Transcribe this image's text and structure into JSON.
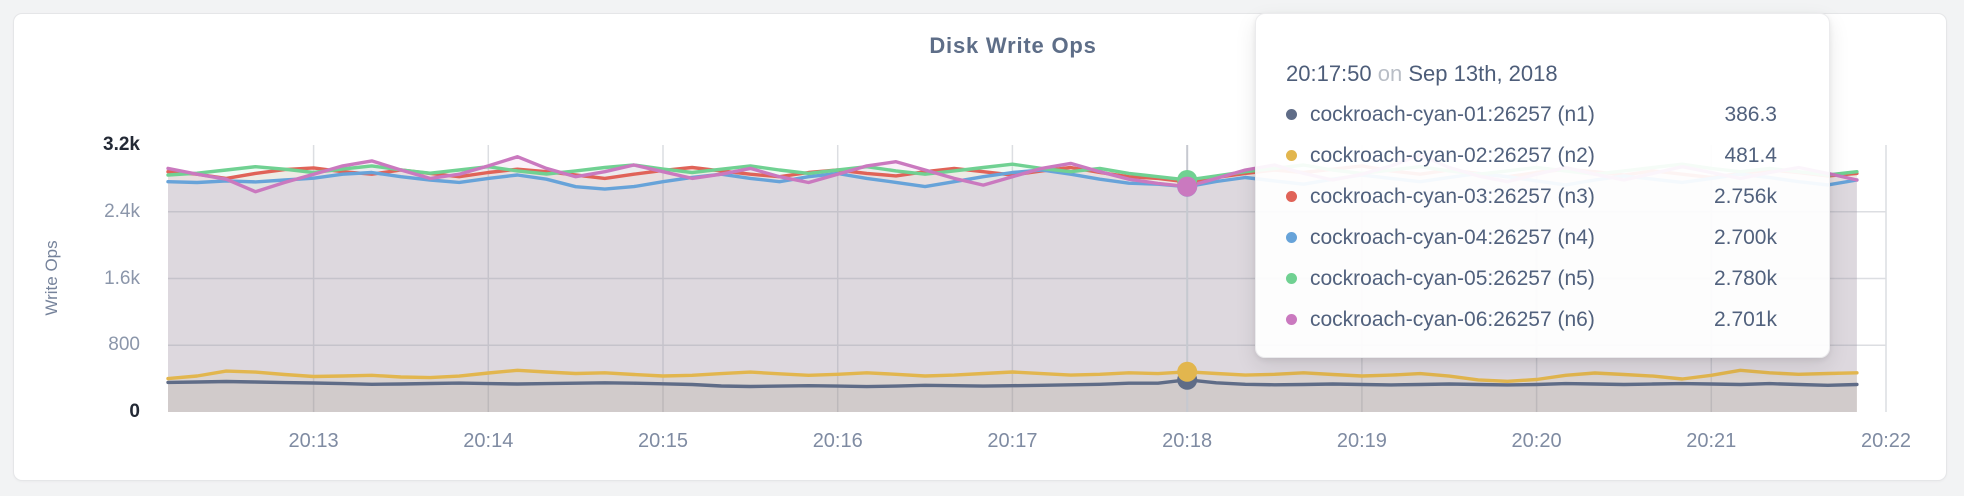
{
  "theme": {
    "page_background": "#f2f3f4",
    "panel_background": "#ffffff",
    "panel_border": "#e5e6e8",
    "title_color": "#5e6e88",
    "axis_label_color": "#76839b",
    "tick_color": "#8b96aa",
    "tick_emphasis_color": "#232935",
    "x_tick_color": "#7f8ba2",
    "gridline_color": "#dcdee2",
    "hover_line_color": "#c6c9d0",
    "tooltip_text_color": "#51617d",
    "tooltip_muted_color": "#b9bec6",
    "area_fill_opacity": 0.1
  },
  "chart_data": {
    "type": "line",
    "title": "Disk Write Ops",
    "ylabel": "Write Ops",
    "xlabel": "",
    "ylim": [
      0,
      3200
    ],
    "grid": true,
    "legend_position": "tooltip",
    "x_start_time": "20:12:10",
    "x_interval_seconds": 10,
    "x_domain": [
      "20:12:10",
      "20:22:00"
    ],
    "x_ticks": [
      "20:13",
      "20:14",
      "20:15",
      "20:16",
      "20:17",
      "20:18",
      "20:19",
      "20:20",
      "20:21",
      "20:22"
    ],
    "y_ticks": [
      {
        "label": "3.2k",
        "value": 3200,
        "emphasis": true,
        "gridline": false
      },
      {
        "label": "2.4k",
        "value": 2400,
        "emphasis": false,
        "gridline": true
      },
      {
        "label": "1.6k",
        "value": 1600,
        "emphasis": false,
        "gridline": true
      },
      {
        "label": "800",
        "value": 800,
        "emphasis": false,
        "gridline": true
      },
      {
        "label": "0",
        "value": 0,
        "emphasis": true,
        "gridline": false
      }
    ],
    "series": [
      {
        "name": "cockroach-cyan-01:26257 (n1)",
        "color": "#5f6c87",
        "values": [
          355,
          360,
          365,
          360,
          352,
          348,
          340,
          332,
          336,
          342,
          346,
          340,
          335,
          340,
          345,
          350,
          345,
          338,
          330,
          312,
          306,
          310,
          315,
          310,
          305,
          310,
          320,
          315,
          310,
          315,
          320,
          326,
          332,
          345,
          345,
          386.3,
          350,
          332,
          326,
          330,
          335,
          330,
          325,
          330,
          336,
          330,
          325,
          330,
          340,
          336,
          330,
          336,
          340,
          335,
          330,
          340,
          330,
          320,
          330
        ]
      },
      {
        "name": "cockroach-cyan-02:26257 (n2)",
        "color": "#e2b64e",
        "values": [
          400,
          432,
          490,
          478,
          450,
          425,
          432,
          440,
          420,
          412,
          430,
          468,
          500,
          480,
          462,
          470,
          450,
          432,
          440,
          460,
          478,
          458,
          440,
          452,
          470,
          452,
          432,
          442,
          462,
          480,
          460,
          442,
          452,
          470,
          460,
          481.4,
          462,
          442,
          452,
          470,
          450,
          432,
          442,
          460,
          430,
          385,
          368,
          390,
          440,
          468,
          450,
          430,
          395,
          440,
          500,
          470,
          452,
          462,
          470
        ]
      },
      {
        "name": "cockroach-cyan-03:26257 (n3)",
        "color": "#e06358",
        "values": [
          2880,
          2850,
          2800,
          2860,
          2905,
          2925,
          2880,
          2850,
          2900,
          2860,
          2820,
          2870,
          2910,
          2880,
          2840,
          2800,
          2850,
          2895,
          2930,
          2890,
          2850,
          2820,
          2870,
          2900,
          2860,
          2830,
          2880,
          2920,
          2880,
          2840,
          2890,
          2930,
          2870,
          2820,
          2800,
          2756,
          2810,
          2860,
          2900,
          2870,
          2910,
          2950,
          2890,
          2850,
          2900,
          2860,
          2820,
          2870,
          2910,
          2880,
          2840,
          2890,
          2850,
          2810,
          2860,
          2900,
          2870,
          2830,
          2860
        ]
      },
      {
        "name": "cockroach-cyan-04:26257 (n4)",
        "color": "#67a3d9",
        "values": [
          2760,
          2750,
          2770,
          2758,
          2780,
          2802,
          2850,
          2870,
          2820,
          2780,
          2752,
          2800,
          2840,
          2790,
          2700,
          2672,
          2702,
          2760,
          2812,
          2850,
          2800,
          2760,
          2820,
          2858,
          2800,
          2752,
          2702,
          2760,
          2820,
          2870,
          2900,
          2850,
          2790,
          2742,
          2730,
          2700,
          2762,
          2810,
          2770,
          2730,
          2790,
          2840,
          2800,
          2760,
          2812,
          2858,
          2820,
          2770,
          2722,
          2780,
          2830,
          2790,
          2752,
          2800,
          2850,
          2810,
          2760,
          2722,
          2780
        ]
      },
      {
        "name": "cockroach-cyan-05:26257 (n5)",
        "color": "#70d192",
        "values": [
          2840,
          2862,
          2900,
          2940,
          2910,
          2870,
          2912,
          2950,
          2900,
          2862,
          2900,
          2940,
          2890,
          2852,
          2890,
          2930,
          2960,
          2912,
          2870,
          2910,
          2950,
          2900,
          2860,
          2900,
          2940,
          2890,
          2850,
          2890,
          2930,
          2970,
          2920,
          2880,
          2920,
          2860,
          2820,
          2780,
          2830,
          2880,
          2920,
          2960,
          2900,
          2860,
          2900,
          2940,
          2890,
          2850,
          2890,
          2930,
          2890,
          2850,
          2890,
          2930,
          2970,
          2920,
          2880,
          2920,
          2880,
          2840,
          2880
        ]
      },
      {
        "name": "cockroach-cyan-06:26257 (n6)",
        "color": "#ca79bf",
        "values": [
          2920,
          2850,
          2790,
          2640,
          2750,
          2850,
          2950,
          3010,
          2900,
          2800,
          2850,
          2950,
          3060,
          2920,
          2820,
          2880,
          2960,
          2880,
          2800,
          2850,
          2920,
          2820,
          2750,
          2850,
          2950,
          3000,
          2900,
          2800,
          2720,
          2820,
          2920,
          2980,
          2880,
          2790,
          2740,
          2701,
          2800,
          2900,
          2960,
          2860,
          2780,
          2850,
          2950,
          3080,
          2930,
          2830,
          2760,
          2850,
          2930,
          2850,
          2780,
          2860,
          2940,
          2870,
          2800,
          2870,
          2930,
          2860,
          2780
        ]
      }
    ]
  },
  "tooltip": {
    "time": "20:17:50",
    "on_word": "on",
    "date": "Sep 13th, 2018",
    "snap_time": "20:18:00",
    "rows": [
      {
        "name": "cockroach-cyan-01:26257 (n1)",
        "value": "386.3",
        "color": "#5f6c87"
      },
      {
        "name": "cockroach-cyan-02:26257 (n2)",
        "value": "481.4",
        "color": "#e2b64e"
      },
      {
        "name": "cockroach-cyan-03:26257 (n3)",
        "value": "2.756k",
        "color": "#e06358"
      },
      {
        "name": "cockroach-cyan-04:26257 (n4)",
        "value": "2.700k",
        "color": "#67a3d9"
      },
      {
        "name": "cockroach-cyan-05:26257 (n5)",
        "value": "2.780k",
        "color": "#70d192"
      },
      {
        "name": "cockroach-cyan-06:26257 (n6)",
        "value": "2.701k",
        "color": "#ca79bf"
      }
    ]
  }
}
